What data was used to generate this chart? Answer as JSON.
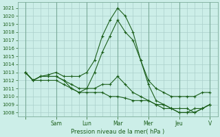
{
  "bg_color": "#cceee8",
  "grid_color": "#aacfcb",
  "line_color": "#1a5e1a",
  "xlabel": "Pression niveau de la mer( hPa )",
  "ylim": [
    1007.5,
    1021.7
  ],
  "yticks": [
    1008,
    1009,
    1010,
    1011,
    1012,
    1013,
    1014,
    1015,
    1016,
    1017,
    1018,
    1019,
    1020,
    1021
  ],
  "day_positions": [
    0,
    24,
    48,
    72,
    96,
    120,
    144
  ],
  "day_labels": [
    "",
    "Sam",
    "Lun",
    "Mar",
    "Mer",
    "Jeu",
    "V"
  ],
  "xmin": -6,
  "xmax": 150,
  "lines": [
    {
      "x": [
        0,
        6,
        12,
        18,
        24,
        30,
        36,
        42,
        48,
        54,
        60,
        66,
        72,
        78,
        84,
        90,
        96,
        102,
        108,
        114,
        120,
        126,
        132,
        138,
        144
      ],
      "y": [
        1013.0,
        1012.0,
        1012.5,
        1012.7,
        1013.0,
        1012.5,
        1012.5,
        1012.5,
        1013.0,
        1014.5,
        1017.5,
        1019.5,
        1021.0,
        1020.0,
        1018.0,
        1014.5,
        1011.5,
        1009.5,
        1009.0,
        1008.5,
        1008.0,
        1008.0,
        1008.5,
        1008.5,
        1009.0
      ]
    },
    {
      "x": [
        0,
        6,
        12,
        18,
        24,
        30,
        36,
        42,
        48,
        54,
        60,
        66,
        72,
        78,
        84,
        90,
        96,
        102,
        108,
        114,
        120,
        126,
        132,
        138,
        144
      ],
      "y": [
        1013.0,
        1012.0,
        1012.5,
        1012.5,
        1012.5,
        1012.0,
        1011.5,
        1011.0,
        1011.0,
        1013.0,
        1015.5,
        1017.5,
        1019.5,
        1018.0,
        1017.0,
        1014.5,
        1012.0,
        1011.0,
        1010.5,
        1010.0,
        1010.0,
        1010.0,
        1010.0,
        1010.5,
        1010.5
      ]
    },
    {
      "x": [
        0,
        6,
        12,
        18,
        24,
        30,
        36,
        42,
        48,
        54,
        60,
        66,
        72,
        78,
        84,
        90,
        96,
        102,
        108,
        114,
        120,
        126,
        132,
        138,
        144
      ],
      "y": [
        1013.0,
        1012.0,
        1012.5,
        1012.5,
        1012.5,
        1012.0,
        1011.0,
        1010.5,
        1011.0,
        1011.0,
        1011.5,
        1011.5,
        1012.5,
        1011.5,
        1010.5,
        1010.0,
        1009.5,
        1009.0,
        1008.5,
        1008.5,
        1008.0,
        1008.0,
        1008.0,
        1008.5,
        1009.0
      ]
    },
    {
      "x": [
        0,
        6,
        12,
        18,
        24,
        30,
        36,
        42,
        48,
        54,
        60,
        66,
        72,
        78,
        84,
        90,
        96,
        102,
        108,
        114,
        120,
        126,
        132,
        138,
        144
      ],
      "y": [
        1013.0,
        1012.0,
        1012.0,
        1012.0,
        1012.0,
        1011.5,
        1011.0,
        1010.5,
        1010.5,
        1010.5,
        1010.5,
        1010.0,
        1010.0,
        1009.8,
        1009.5,
        1009.5,
        1009.5,
        1009.0,
        1009.0,
        1008.5,
        1008.5,
        1008.5,
        1008.0,
        1008.5,
        1009.0
      ]
    }
  ]
}
